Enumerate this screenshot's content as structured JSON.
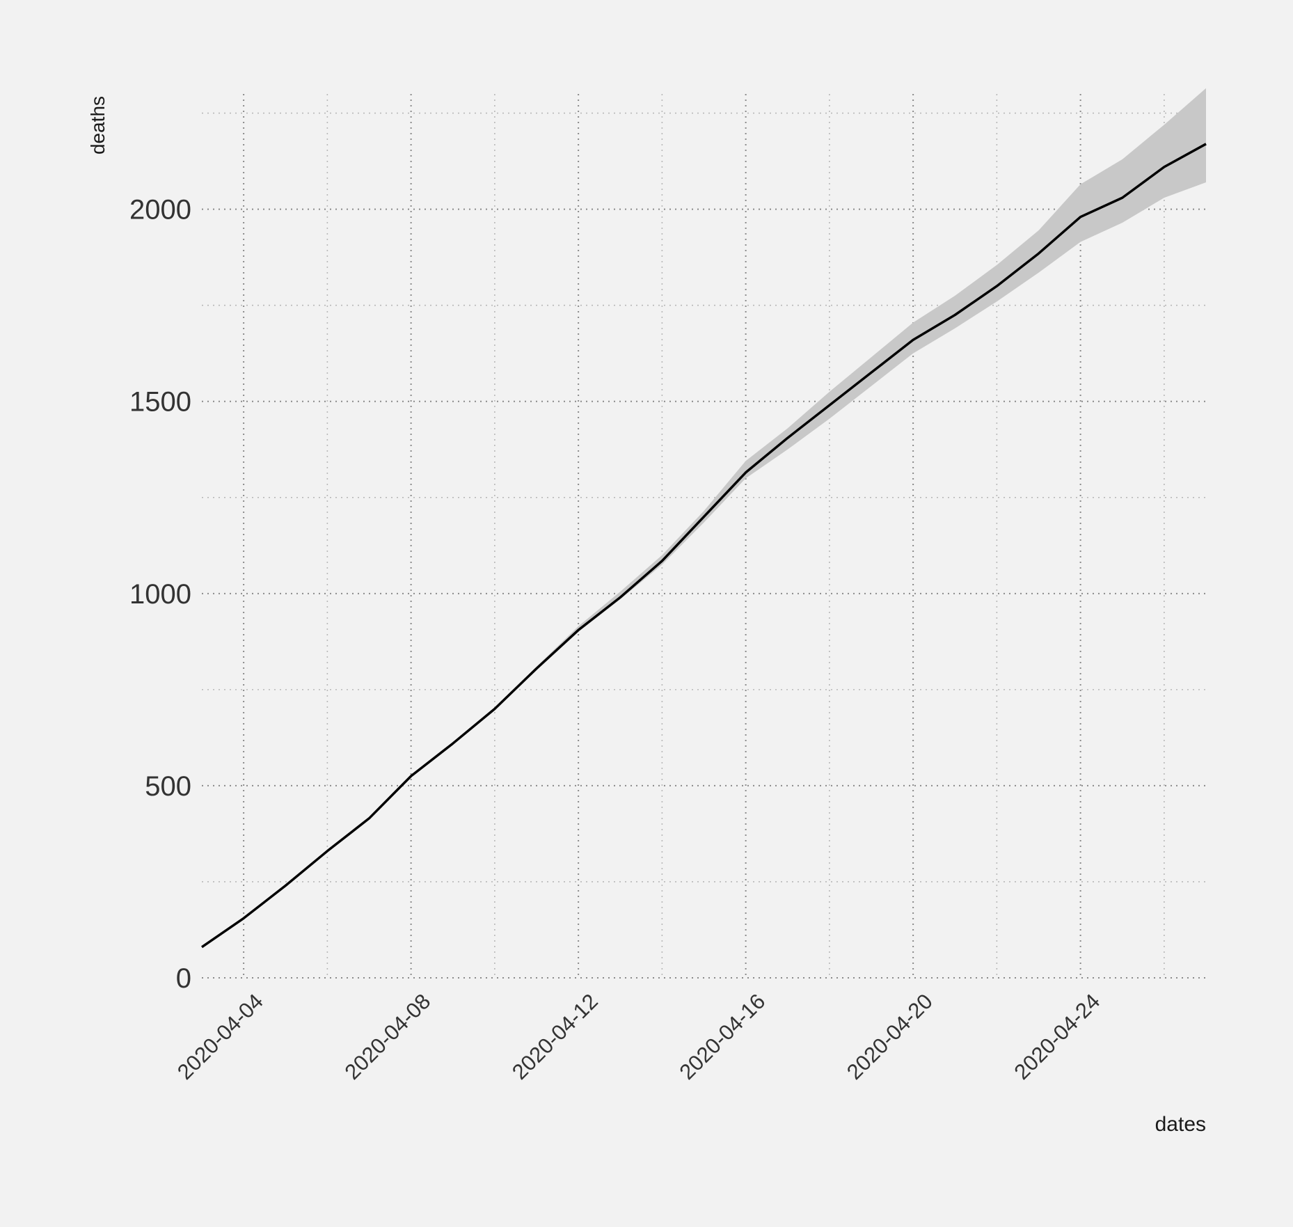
{
  "chart_data": {
    "type": "line",
    "xlabel": "dates",
    "ylabel": "deaths",
    "xlim": [
      "2020-04-03",
      "2020-04-27"
    ],
    "ylim": [
      0,
      2300
    ],
    "x_tick_labels": [
      "2020-04-04",
      "2020-04-08",
      "2020-04-12",
      "2020-04-16",
      "2020-04-20",
      "2020-04-24"
    ],
    "y_tick_labels": [
      "0",
      "500",
      "1000",
      "1500",
      "2000"
    ],
    "grid": true,
    "grid_style": "dotted",
    "series": [
      {
        "x": [
          "2020-04-03",
          "2020-04-04",
          "2020-04-05",
          "2020-04-06",
          "2020-04-07",
          "2020-04-08",
          "2020-04-09",
          "2020-04-10",
          "2020-04-11",
          "2020-04-12",
          "2020-04-13",
          "2020-04-14",
          "2020-04-15",
          "2020-04-16",
          "2020-04-17",
          "2020-04-18",
          "2020-04-19",
          "2020-04-20",
          "2020-04-21",
          "2020-04-22",
          "2020-04-23",
          "2020-04-24",
          "2020-04-25",
          "2020-04-26",
          "2020-04-27"
        ],
        "values": [
          80,
          155,
          240,
          330,
          415,
          525,
          610,
          700,
          805,
          905,
          990,
          1085,
          1200,
          1315,
          1405,
          1490,
          1575,
          1660,
          1725,
          1800,
          1885,
          1980,
          2030,
          2110,
          2170
        ],
        "lower": [
          80,
          155,
          240,
          330,
          415,
          525,
          610,
          700,
          800,
          900,
          985,
          1075,
          1185,
          1300,
          1375,
          1455,
          1540,
          1625,
          1690,
          1760,
          1835,
          1915,
          1965,
          2030,
          2070
        ],
        "upper": [
          80,
          155,
          240,
          330,
          415,
          525,
          610,
          700,
          810,
          915,
          1005,
          1100,
          1215,
          1345,
          1430,
          1525,
          1615,
          1705,
          1775,
          1855,
          1945,
          2065,
          2130,
          2220,
          2315
        ],
        "color": "#000000",
        "band_color": "#c8c8c8"
      }
    ]
  }
}
